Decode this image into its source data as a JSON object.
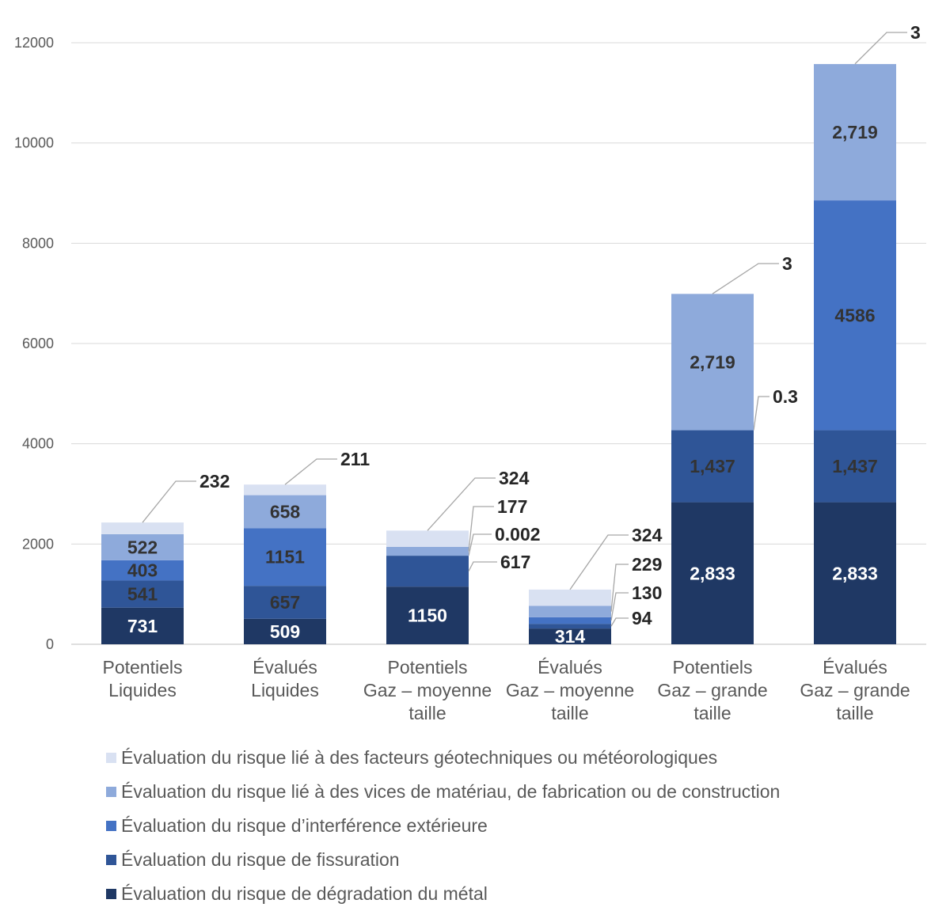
{
  "chart_data": {
    "type": "bar",
    "stacked": true,
    "categories": [
      [
        "Potentiels",
        "Liquides"
      ],
      [
        "Évalués",
        "Liquides"
      ],
      [
        "Potentiels",
        "Gaz – moyenne",
        "taille"
      ],
      [
        "Évalués",
        "Gaz – moyenne",
        "taille"
      ],
      [
        "Potentiels",
        "Gaz – grande",
        "taille"
      ],
      [
        "Évalués",
        "Gaz – grande",
        "taille"
      ]
    ],
    "ylim": [
      0,
      12000
    ],
    "yticks": [
      0,
      2000,
      4000,
      6000,
      8000,
      10000,
      12000
    ],
    "grid": true,
    "legend_position": "bottom",
    "series": [
      {
        "name": "Évaluation du risque de dégradation du métal",
        "color": "#1f3864",
        "values": [
          731,
          509,
          1150,
          314,
          2833,
          2833
        ],
        "labels": [
          "731",
          "509",
          "1150",
          "314",
          "2,833",
          "2,833"
        ]
      },
      {
        "name": "Évaluation du risque de fissuration",
        "color": "#2f5597",
        "values": [
          541,
          657,
          617,
          94,
          1437,
          1437
        ],
        "labels": [
          "541",
          "657",
          "617",
          "94",
          "1,437",
          "1,437"
        ]
      },
      {
        "name": "Évaluation du risque d’interférence extérieure",
        "color": "#4472c4",
        "values": [
          403,
          1151,
          0.002,
          130,
          0.3,
          4586
        ],
        "labels": [
          "403",
          "1151",
          "0.002",
          "130",
          "0.3",
          "4586"
        ]
      },
      {
        "name": "Évaluation du risque lié à des vices de matériau, de fabrication ou de construction",
        "color": "#8eaadb",
        "values": [
          522,
          658,
          177,
          229,
          2719,
          2719
        ],
        "labels": [
          "522",
          "658",
          "177",
          "229",
          "2,719",
          "2,719"
        ]
      },
      {
        "name": "Évaluation du risque lié à des facteurs géotechniques ou météorologiques",
        "color": "#d9e1f2",
        "values": [
          232,
          211,
          324,
          324,
          3,
          3
        ],
        "labels": [
          "232",
          "211",
          "324",
          "324",
          "3",
          "3"
        ]
      }
    ]
  }
}
